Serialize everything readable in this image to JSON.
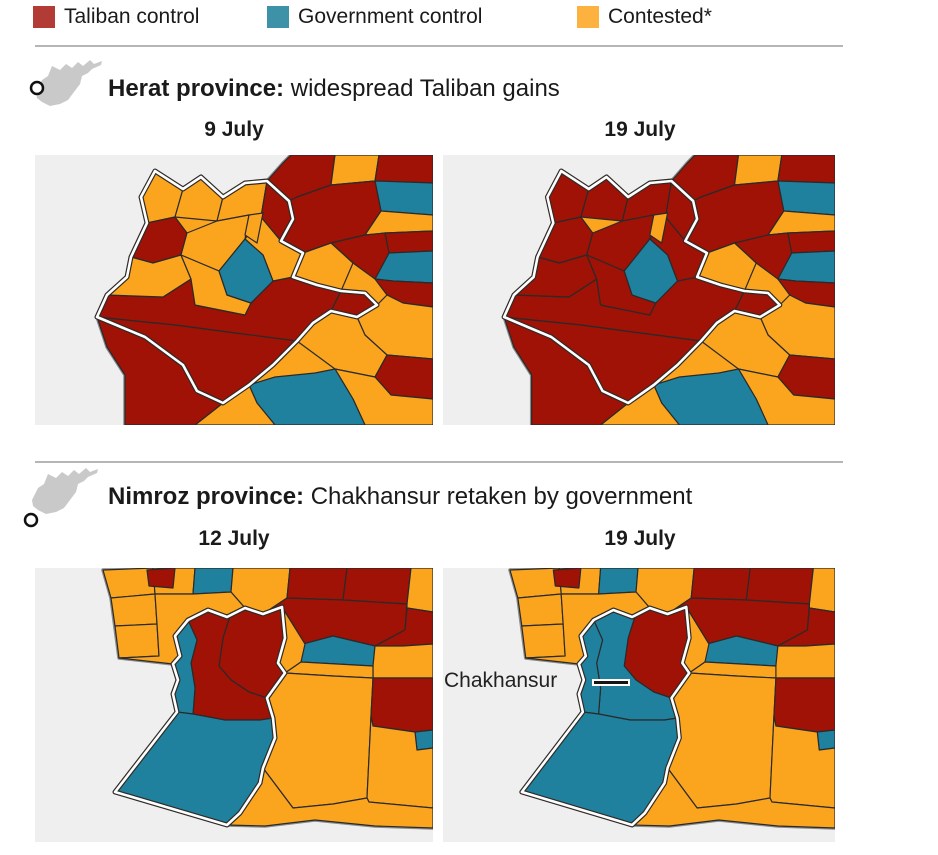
{
  "legend": {
    "items": [
      {
        "id": "taliban",
        "label": "Taliban control",
        "color": "#b23b35"
      },
      {
        "id": "government",
        "label": "Government control",
        "color": "#3d92a7"
      },
      {
        "id": "contested",
        "label": "Contested*",
        "color": "#fdb23f"
      }
    ]
  },
  "map_colors": {
    "taliban": "#a01106",
    "government": "#1f819e",
    "contested": "#fba51f",
    "background": "#efefef",
    "border": "#2a2a2a",
    "province_outline": "#ffffff",
    "province_casing": "#2f2a26",
    "land_casing": "#8a8a8a",
    "icon_gray": "#c9c9c9"
  },
  "sections": [
    {
      "id": "herat",
      "title_bold": "Herat province:",
      "title_rest": "widespread Taliban gains",
      "maps": [
        {
          "date": "9 July",
          "fills": {
            "o1": "taliban",
            "o2": "contested",
            "o3": "taliban",
            "o4": "government",
            "o5": "taliban",
            "o6": "contested",
            "o6b": "taliban",
            "o7": "government",
            "o8": "taliban",
            "o9": "contested",
            "o10": "taliban",
            "o11": "contested",
            "o12": "contested",
            "o13": "taliban",
            "o14": "contested",
            "o15": "government",
            "o16": "contested",
            "o17": "taliban",
            "p13": "taliban",
            "p14": "taliban",
            "p15": "taliban",
            "p1": "contested",
            "p2": "contested",
            "p3": "contested",
            "p4": "taliban",
            "p5": "contested",
            "p6": "contested",
            "p8": "contested",
            "p9b": "contested",
            "p10": "taliban",
            "p7": "government",
            "p12": "contested"
          }
        },
        {
          "date": "19 July",
          "fills": {
            "o1": "taliban",
            "o2": "contested",
            "o3": "taliban",
            "o4": "government",
            "o5": "taliban",
            "o6": "contested",
            "o6b": "taliban",
            "o7": "government",
            "o8": "taliban",
            "o9": "contested",
            "o10": "taliban",
            "o11": "contested",
            "o12": "contested",
            "o13": "taliban",
            "o14": "contested",
            "o15": "government",
            "o16": "contested",
            "o17": "taliban",
            "p13": "taliban",
            "p14": "taliban",
            "p15": "taliban",
            "p1": "taliban",
            "p2": "taliban",
            "p3": "taliban",
            "p4": "taliban",
            "p5": "taliban",
            "p6": "taliban",
            "p8": "taliban",
            "p9b": "taliban",
            "p10": "taliban",
            "p7": "government",
            "p12": "contested"
          }
        }
      ]
    },
    {
      "id": "nimroz",
      "title_bold": "Nimroz province:",
      "title_rest": "Chakhansur retaken by government",
      "annotation": "Chakhansur",
      "maps": [
        {
          "date": "12 July",
          "fills": {
            "t1": "contested",
            "t2": "contested",
            "t3": "contested",
            "t4": "contested",
            "t5": "taliban",
            "t6": "government",
            "t8": "contested",
            "t7": "contested",
            "r1": "taliban",
            "r2": "taliban",
            "r4": "contested",
            "r3": "taliban",
            "r5": "taliban",
            "r6": "government",
            "r7": "contested",
            "m1": "contested",
            "m2": "contested",
            "m3": "contested",
            "m4": "taliban",
            "m5": "government",
            "m6": "contested",
            "m7": "contested",
            "khash": "taliban",
            "chakhansur": "taliban",
            "kang": "government",
            "charburjak": "government"
          }
        },
        {
          "date": "19 July",
          "fills": {
            "t1": "contested",
            "t2": "contested",
            "t3": "contested",
            "t4": "contested",
            "t5": "taliban",
            "t6": "government",
            "t8": "contested",
            "t7": "contested",
            "r1": "taliban",
            "r2": "taliban",
            "r4": "contested",
            "r3": "taliban",
            "r5": "taliban",
            "r6": "government",
            "r7": "contested",
            "m1": "contested",
            "m2": "contested",
            "m3": "contested",
            "m4": "taliban",
            "m5": "government",
            "m6": "contested",
            "m7": "contested",
            "khash": "taliban",
            "chakhansur": "government",
            "kang": "government",
            "charburjak": "government"
          }
        }
      ]
    }
  ]
}
